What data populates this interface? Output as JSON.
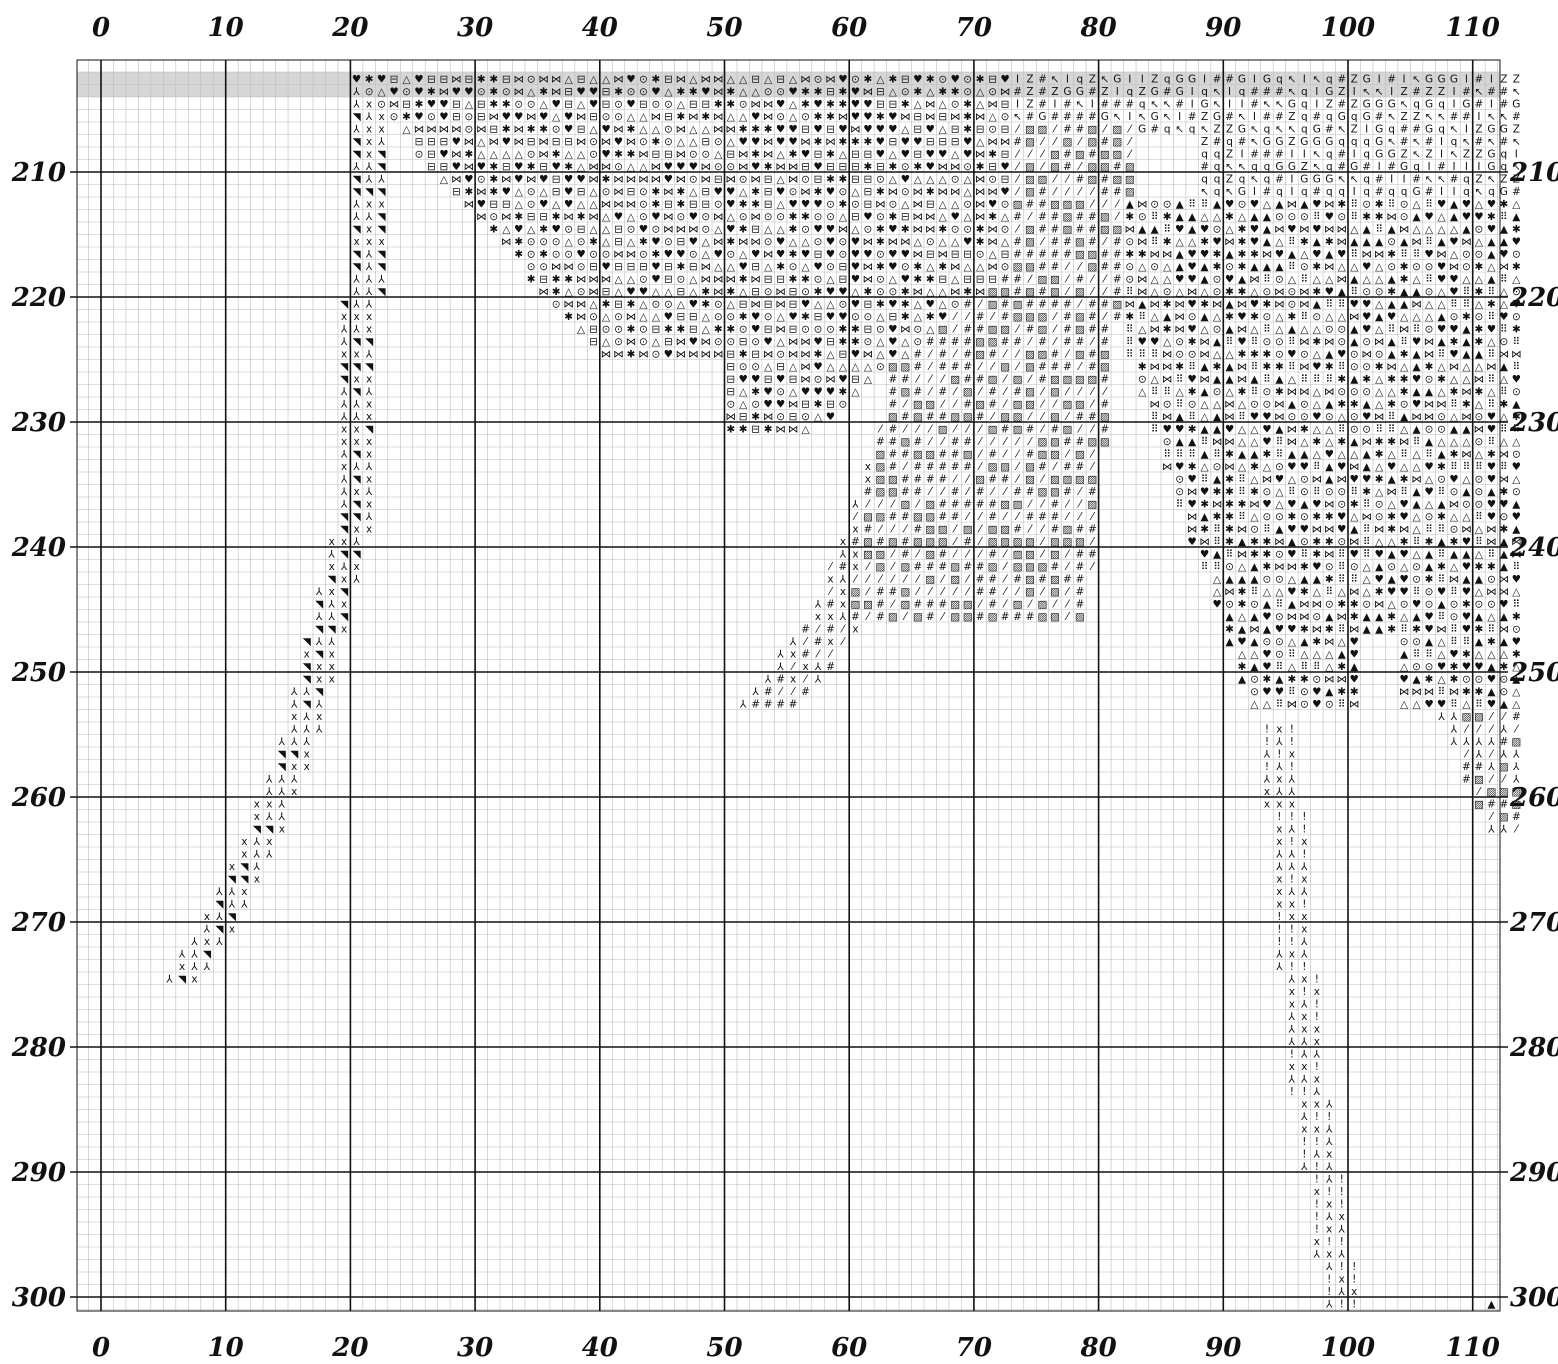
{
  "pattern": {
    "type": "cross-stitch-chart",
    "columns": {
      "start": 0,
      "end": 113,
      "labels": [
        "0",
        "10",
        "20",
        "30",
        "40",
        "50",
        "60",
        "70",
        "80",
        "90",
        "100",
        "110"
      ]
    },
    "rows": {
      "start": 202,
      "end": 301,
      "labels": [
        "210",
        "220",
        "230",
        "240",
        "250",
        "260",
        "270",
        "280",
        "290",
        "300"
      ]
    },
    "major_every": 10,
    "highlight_rows": [
      202,
      203
    ],
    "colors": {
      "grid_minor": "#bdbdbd",
      "grid_major": "#111111",
      "symbol": "#111111",
      "highlight": "#d6d6d6",
      "background": "#ffffff"
    },
    "symbols": [
      "x",
      "⅄",
      "◥",
      "⁄",
      "#",
      "▨",
      "⊟",
      "⊙",
      "△",
      "✱",
      "⋈",
      "♥",
      "G",
      "q",
      "I",
      "↖",
      "Z",
      "⠿",
      "▲"
    ],
    "marker": {
      "col": 111,
      "row": 300,
      "symbol": "▲"
    },
    "regions": [
      {
        "name": "left-diagonal-band",
        "path": [
          [
            20,
            202
          ],
          [
            19,
            236
          ],
          [
            14,
            256
          ],
          [
            10,
            266
          ],
          [
            5,
            274
          ]
        ],
        "width": 3,
        "symbols": [
          "⅄",
          "x",
          "◥"
        ]
      },
      {
        "name": "upper-dense-mass",
        "rows": [
          202,
          230
        ],
        "symbols": [
          "⋈",
          "✱",
          "⊙",
          "♥",
          "△",
          "⊟"
        ]
      },
      {
        "name": "middle-diagonal-band",
        "path": [
          [
            62,
            231
          ],
          [
            57,
            245
          ],
          [
            51,
            252
          ]
        ],
        "width": 5,
        "symbols": [
          "#",
          "⁄",
          "⅄",
          "x"
        ]
      },
      {
        "name": "right-dense-mass",
        "rows": [
          206,
          252
        ],
        "symbols": [
          "✱",
          "⊙",
          "△",
          "♥",
          "⋈",
          "⠿",
          "▲"
        ]
      },
      {
        "name": "lower-right-tail",
        "path": [
          [
            93,
            254
          ],
          [
            95,
            280
          ],
          [
            98,
            300
          ]
        ],
        "width": 3,
        "symbols": [
          "x",
          "⅄",
          "!"
        ]
      }
    ]
  }
}
